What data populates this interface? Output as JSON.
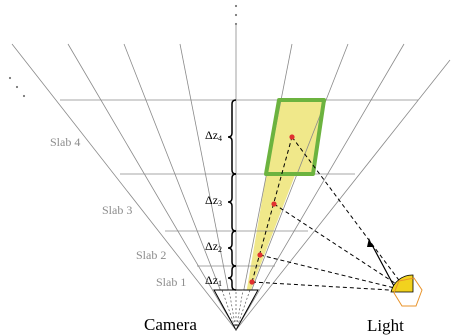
{
  "labels": {
    "camera": "Camera",
    "light": "Light",
    "slabs": [
      "Slab 1",
      "Slab 2",
      "Slab 3",
      "Slab 4"
    ],
    "deltas": [
      {
        "base": "Δz",
        "sub": "1"
      },
      {
        "base": "Δz",
        "sub": "2"
      },
      {
        "base": "Δz",
        "sub": "3"
      },
      {
        "base": "Δz",
        "sub": "4"
      }
    ]
  },
  "colors": {
    "grid": "#888888",
    "slab_fill": "#f0e88a",
    "highlight_stroke": "#6cb33f",
    "sample_point": "#e03030",
    "slab_label": "#8c8c8c",
    "light_fill": "#f2d21e",
    "light_box": "#e8932a",
    "text": "#000000"
  },
  "icons": [
    "camera-frustum-icon",
    "light-icon",
    "ellipsis-icon"
  ]
}
